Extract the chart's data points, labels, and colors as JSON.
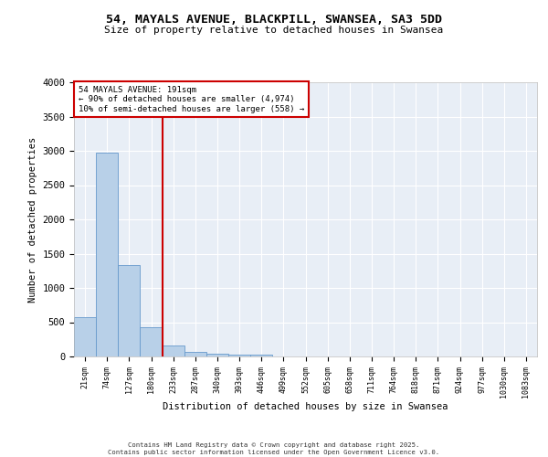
{
  "title_line1": "54, MAYALS AVENUE, BLACKPILL, SWANSEA, SA3 5DD",
  "title_line2": "Size of property relative to detached houses in Swansea",
  "xlabel": "Distribution of detached houses by size in Swansea",
  "ylabel": "Number of detached properties",
  "bar_labels": [
    "21sqm",
    "74sqm",
    "127sqm",
    "180sqm",
    "233sqm",
    "287sqm",
    "340sqm",
    "393sqm",
    "446sqm",
    "499sqm",
    "552sqm",
    "605sqm",
    "658sqm",
    "711sqm",
    "764sqm",
    "818sqm",
    "871sqm",
    "924sqm",
    "977sqm",
    "1030sqm",
    "1083sqm"
  ],
  "bar_values": [
    580,
    2970,
    1340,
    430,
    160,
    70,
    40,
    30,
    30,
    0,
    0,
    0,
    0,
    0,
    0,
    0,
    0,
    0,
    0,
    0,
    0
  ],
  "bar_color": "#b8d0e8",
  "bar_edge_color": "#6699cc",
  "background_color": "#e8eef6",
  "grid_color": "#ffffff",
  "vline_color": "#cc0000",
  "annotation_text": "54 MAYALS AVENUE: 191sqm\n← 90% of detached houses are smaller (4,974)\n10% of semi-detached houses are larger (558) →",
  "annotation_box_color": "#ffffff",
  "annotation_box_edge": "#cc0000",
  "ylim": [
    0,
    4000
  ],
  "yticks": [
    0,
    500,
    1000,
    1500,
    2000,
    2500,
    3000,
    3500,
    4000
  ],
  "footer_line1": "Contains HM Land Registry data © Crown copyright and database right 2025.",
  "footer_line2": "Contains public sector information licensed under the Open Government Licence v3.0."
}
